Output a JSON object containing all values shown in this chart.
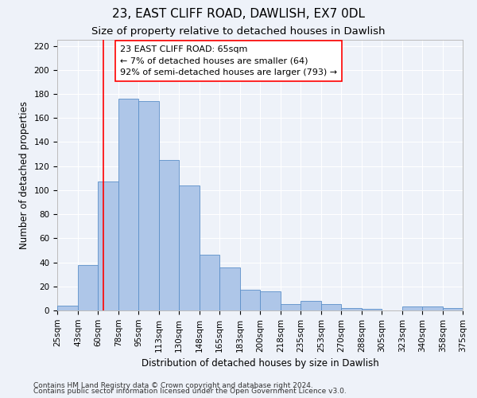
{
  "title": "23, EAST CLIFF ROAD, DAWLISH, EX7 0DL",
  "subtitle": "Size of property relative to detached houses in Dawlish",
  "xlabel": "Distribution of detached houses by size in Dawlish",
  "ylabel": "Number of detached properties",
  "footer_line1": "Contains HM Land Registry data © Crown copyright and database right 2024.",
  "footer_line2": "Contains public sector information licensed under the Open Government Licence v3.0.",
  "bin_edges": [
    25,
    43,
    60,
    78,
    95,
    113,
    130,
    148,
    165,
    183,
    200,
    218,
    235,
    253,
    270,
    288,
    305,
    323,
    340,
    358,
    375
  ],
  "bar_heights": [
    4,
    38,
    107,
    176,
    174,
    125,
    104,
    46,
    36,
    17,
    16,
    5,
    8,
    5,
    2,
    1,
    0,
    3,
    3,
    2
  ],
  "tick_labels": [
    "25sqm",
    "43sqm",
    "60sqm",
    "78sqm",
    "95sqm",
    "113sqm",
    "130sqm",
    "148sqm",
    "165sqm",
    "183sqm",
    "200sqm",
    "218sqm",
    "235sqm",
    "253sqm",
    "270sqm",
    "288sqm",
    "305sqm",
    "323sqm",
    "340sqm",
    "358sqm",
    "375sqm"
  ],
  "bar_color": "#aec6e8",
  "bar_edge_color": "#5b8fc9",
  "red_line_x": 65,
  "annotation_line1": "23 EAST CLIFF ROAD: 65sqm",
  "annotation_line2": "← 7% of detached houses are smaller (64)",
  "annotation_line3": "92% of semi-detached houses are larger (793) →",
  "ylim": [
    0,
    225
  ],
  "yticks": [
    0,
    20,
    40,
    60,
    80,
    100,
    120,
    140,
    160,
    180,
    200,
    220
  ],
  "bg_color": "#eef2f9",
  "grid_color": "#ffffff",
  "title_fontsize": 11,
  "subtitle_fontsize": 9.5,
  "axis_label_fontsize": 8.5,
  "tick_fontsize": 7.5,
  "annotation_fontsize": 8,
  "footer_fontsize": 6.5
}
